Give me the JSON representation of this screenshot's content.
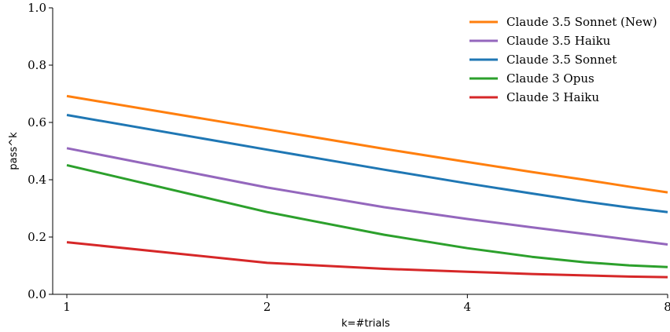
{
  "chart_data": {
    "type": "line",
    "xlabel": "k=#trials",
    "ylabel": "pass^k",
    "xlim": [
      1,
      8
    ],
    "ylim": [
      0,
      1.0
    ],
    "x_scale": "log2",
    "x_ticks": [
      1,
      2,
      4,
      8
    ],
    "x_tick_labels": [
      "1",
      "2",
      "4",
      "8"
    ],
    "y_ticks": [
      0.0,
      0.2,
      0.4,
      0.6,
      0.8,
      1.0
    ],
    "y_tick_labels": [
      "0.0",
      "0.2",
      "0.4",
      "0.6",
      "0.8",
      "1.0"
    ],
    "grid": false,
    "legend_position": "top-right",
    "x": [
      1,
      2,
      3,
      4,
      5,
      6,
      7,
      8
    ],
    "series": [
      {
        "name": "Claude 3.5 Sonnet (New)",
        "color": "#ff7f0e",
        "values": [
          0.692,
          0.576,
          0.508,
          0.462,
          0.427,
          0.4,
          0.376,
          0.356
        ]
      },
      {
        "name": "Claude 3.5 Haiku",
        "color": "#9467bd",
        "values": [
          0.51,
          0.373,
          0.304,
          0.263,
          0.234,
          0.211,
          0.191,
          0.174
        ]
      },
      {
        "name": "Claude 3.5 Sonnet",
        "color": "#1f77b4",
        "values": [
          0.626,
          0.505,
          0.435,
          0.387,
          0.352,
          0.324,
          0.303,
          0.287
        ]
      },
      {
        "name": "Claude 3 Opus",
        "color": "#2ca02c",
        "values": [
          0.451,
          0.287,
          0.208,
          0.161,
          0.131,
          0.112,
          0.101,
          0.095
        ]
      },
      {
        "name": "Claude 3 Haiku",
        "color": "#d62728",
        "values": [
          0.182,
          0.11,
          0.089,
          0.079,
          0.071,
          0.066,
          0.062,
          0.06
        ]
      }
    ]
  }
}
